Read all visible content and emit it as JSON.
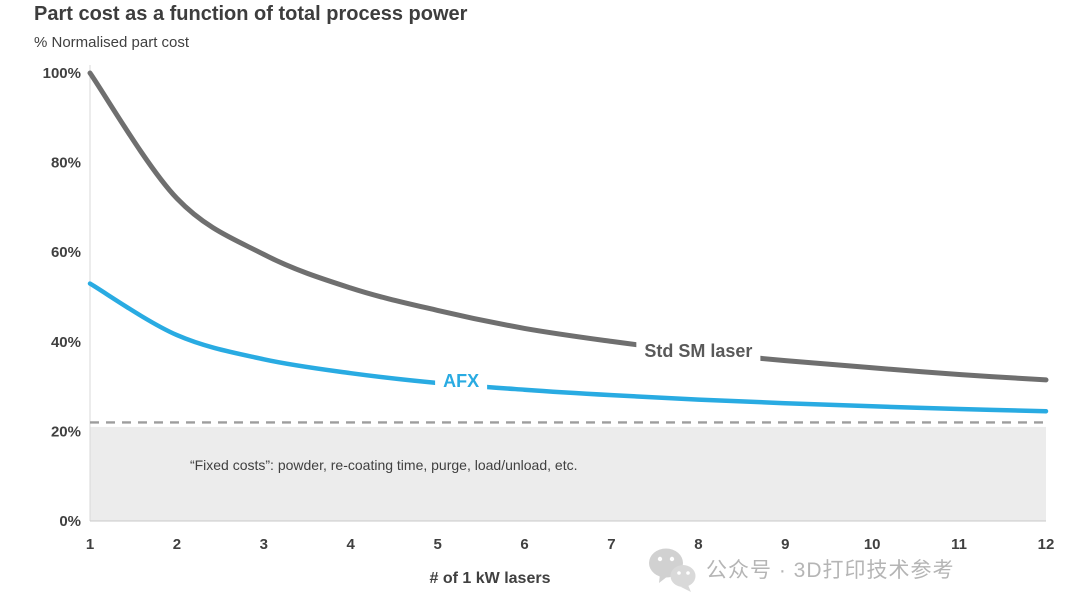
{
  "chart_data": {
    "type": "line",
    "title": "Part cost as a function of total process power",
    "subtitle": "% Normalised part cost",
    "xlabel": "# of 1 kW lasers",
    "x": [
      1,
      2,
      3,
      4,
      5,
      6,
      7,
      8,
      9,
      10,
      11,
      12
    ],
    "xlim": [
      1,
      12
    ],
    "ylim": [
      0,
      100
    ],
    "grid": false,
    "y_ticks": [
      {
        "value": 0,
        "label": "0%"
      },
      {
        "value": 20,
        "label": "20%"
      },
      {
        "value": 40,
        "label": "40%"
      },
      {
        "value": 60,
        "label": "60%"
      },
      {
        "value": 80,
        "label": "80%"
      },
      {
        "value": 100,
        "label": "100%"
      }
    ],
    "series": [
      {
        "name": "Std SM laser",
        "color": "#6f6f6f",
        "label_color": "#595959",
        "values": [
          100,
          72,
          59.5,
          52,
          47,
          43,
          40.1,
          37.7,
          35.8,
          34.2,
          32.7,
          31.5
        ],
        "label_at": {
          "x": 8.0,
          "y": 38
        }
      },
      {
        "name": "AFX",
        "color": "#29abe2",
        "label_color": "#29abe2",
        "values": [
          53,
          41.5,
          36.1,
          33,
          30.8,
          29.3,
          28.1,
          27.1,
          26.3,
          25.6,
          25,
          24.5
        ],
        "label_at": {
          "x": 5.27,
          "y": 31.3
        }
      }
    ],
    "reference_line": {
      "value": 22,
      "color": "#9d9d9d",
      "style": "dashed"
    },
    "shaded_band": {
      "from": 0,
      "to": 21,
      "color": "#ececec"
    },
    "annotation": {
      "text": "“Fixed costs”: powder, re-coating time, purge, load/unload, etc.",
      "x": 2.15,
      "y": 11.4,
      "color": "#404040"
    }
  },
  "watermark": {
    "text": "公众号 · 3D打印技术参考",
    "icon": "wechat-icon"
  }
}
